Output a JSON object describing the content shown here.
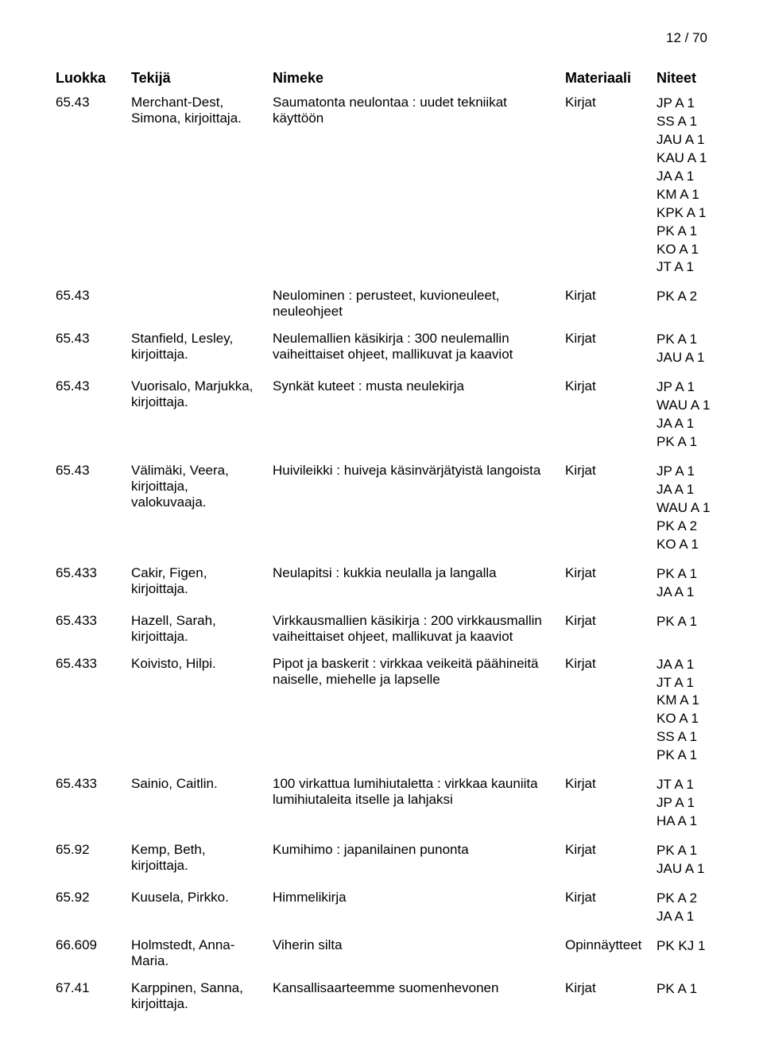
{
  "page_number": "12 / 70",
  "columns": {
    "luokka": "Luokka",
    "tekija": "Tekijä",
    "nimeke": "Nimeke",
    "materiaali": "Materiaali",
    "niteet": "Niteet"
  },
  "rows": [
    {
      "luokka": "65.43",
      "tekija": "Merchant-Dest, Simona, kirjoittaja.",
      "nimeke": "Saumatonta neulontaa : uudet tekniikat käyttöön",
      "materiaali": "Kirjat",
      "niteet": [
        "JP A 1",
        "SS A 1",
        "JAU A 1",
        "KAU A 1",
        "JA A 1",
        "KM A 1",
        "KPK A 1",
        "PK A 1",
        "KO A 1",
        "JT A 1"
      ]
    },
    {
      "luokka": "65.43",
      "tekija": "",
      "nimeke": "Neulominen : perusteet, kuvioneuleet, neuleohjeet",
      "materiaali": "Kirjat",
      "niteet": [
        "PK A 2"
      ]
    },
    {
      "luokka": "65.43",
      "tekija": "Stanfield, Lesley, kirjoittaja.",
      "nimeke": "Neulemallien käsikirja : 300 neulemallin vaiheittaiset ohjeet, mallikuvat ja kaaviot",
      "materiaali": "Kirjat",
      "niteet": [
        "PK A 1",
        "JAU A 1"
      ]
    },
    {
      "luokka": "65.43",
      "tekija": "Vuorisalo, Marjukka, kirjoittaja.",
      "nimeke": "Synkät kuteet : musta neulekirja",
      "materiaali": "Kirjat",
      "niteet": [
        "JP A 1",
        "WAU A 1",
        "JA A 1",
        "PK A 1"
      ]
    },
    {
      "luokka": "65.43",
      "tekija": "Välimäki, Veera, kirjoittaja, valokuvaaja.",
      "nimeke": "Huivileikki : huiveja käsinvärjätyistä langoista",
      "materiaali": "Kirjat",
      "niteet": [
        "JP A 1",
        "JA A 1",
        "WAU A 1",
        "PK A 2",
        "KO A 1"
      ]
    },
    {
      "luokka": "65.433",
      "tekija": "Cakir, Figen, kirjoittaja.",
      "nimeke": "Neulapitsi : kukkia neulalla ja langalla",
      "materiaali": "Kirjat",
      "niteet": [
        "PK A 1",
        "JA A 1"
      ]
    },
    {
      "luokka": "65.433",
      "tekija": "Hazell, Sarah, kirjoittaja.",
      "nimeke": "Virkkausmallien käsikirja : 200 virkkausmallin vaiheittaiset ohjeet, mallikuvat ja kaaviot",
      "materiaali": "Kirjat",
      "niteet": [
        "PK A 1"
      ]
    },
    {
      "luokka": "65.433",
      "tekija": "Koivisto, Hilpi.",
      "nimeke": "Pipot ja baskerit : virkkaa veikeitä päähineitä naiselle, miehelle ja lapselle",
      "materiaali": "Kirjat",
      "niteet": [
        "JA A 1",
        "JT A 1",
        "KM A 1",
        "KO A 1",
        "SS A 1",
        "PK A 1"
      ]
    },
    {
      "luokka": "65.433",
      "tekija": "Sainio, Caitlin.",
      "nimeke": "100 virkattua lumihiutaletta : virkkaa kauniita lumihiutaleita itselle ja lahjaksi",
      "materiaali": "Kirjat",
      "niteet": [
        "JT A 1",
        "JP A 1",
        "HA A 1"
      ]
    },
    {
      "luokka": "65.92",
      "tekija": "Kemp, Beth, kirjoittaja.",
      "nimeke": "Kumihimo : japanilainen punonta",
      "materiaali": "Kirjat",
      "niteet": [
        "PK A 1",
        "JAU A 1"
      ]
    },
    {
      "luokka": "65.92",
      "tekija": "Kuusela, Pirkko.",
      "nimeke": "Himmelikirja",
      "materiaali": "Kirjat",
      "niteet": [
        "PK A 2",
        "JA A 1"
      ]
    },
    {
      "luokka": "66.609",
      "tekija": "Holmstedt, Anna-Maria.",
      "nimeke": "Viherin silta",
      "materiaali": "Opinnäytteet",
      "niteet": [
        "PK KJ 1"
      ]
    },
    {
      "luokka": "67.41",
      "tekija": "Karppinen, Sanna, kirjoittaja.",
      "nimeke": "Kansallisaarteemme suomenhevonen",
      "materiaali": "Kirjat",
      "niteet": [
        "PK A 1"
      ]
    }
  ]
}
